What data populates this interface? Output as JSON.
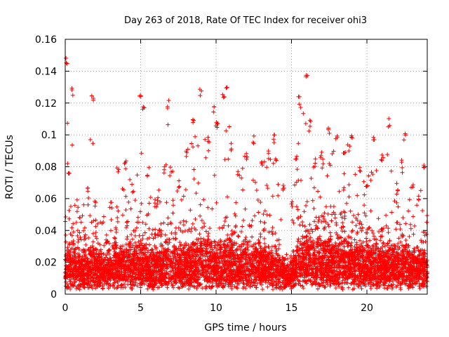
{
  "chart_data": {
    "type": "scatter",
    "title": "Day 263 of 2018, Rate Of TEC Index for receiver ohi3",
    "xlabel": "GPS time / hours",
    "ylabel": "ROTI / TECUs",
    "xlim": [
      0,
      24
    ],
    "ylim": [
      0,
      0.16
    ],
    "x_ticks": [
      0,
      5,
      10,
      15,
      20,
      25
    ],
    "x_tick_labels": [
      "0",
      "5",
      "10",
      "15",
      "20",
      ""
    ],
    "y_ticks": [
      0,
      0.02,
      0.04,
      0.06,
      0.08,
      0.1,
      0.12,
      0.14,
      0.16
    ],
    "y_tick_labels": [
      "0",
      "0.02",
      "0.04",
      "0.06",
      "0.08",
      "0.1",
      "0.12",
      "0.14",
      "0.16"
    ],
    "grid": true,
    "marker": "plus",
    "series": [
      {
        "color": "#ff0000",
        "envelope": {
          "x": [
            0,
            0.1,
            0.2,
            0.5,
            0.8,
            1.0,
            1.5,
            1.8,
            2.0,
            2.5,
            3.0,
            3.5,
            3.8,
            4.0,
            4.5,
            5.0,
            5.2,
            5.5,
            6.0,
            6.5,
            6.8,
            7.0,
            7.5,
            8.0,
            8.5,
            9.0,
            9.5,
            9.8,
            10.0,
            10.5,
            10.7,
            11.0,
            11.5,
            12.0,
            12.5,
            13.0,
            13.5,
            13.8,
            14.0,
            14.5,
            15.0,
            15.3,
            15.5,
            16.0,
            16.2,
            16.5,
            17.0,
            17.5,
            18.0,
            18.5,
            18.8,
            19.0,
            19.5,
            20.0,
            20.5,
            21.0,
            21.5,
            22.0,
            22.3,
            22.5,
            23.0,
            23.5,
            23.8,
            24.0
          ],
          "peak": [
            0.05,
            0.15,
            0.08,
            0.13,
            0.06,
            0.05,
            0.07,
            0.127,
            0.06,
            0.05,
            0.06,
            0.08,
            0.07,
            0.085,
            0.07,
            0.13,
            0.12,
            0.08,
            0.06,
            0.08,
            0.122,
            0.08,
            0.07,
            0.09,
            0.11,
            0.13,
            0.1,
            0.12,
            0.11,
            0.127,
            0.13,
            0.095,
            0.08,
            0.09,
            0.1,
            0.085,
            0.09,
            0.101,
            0.085,
            0.07,
            0.06,
            0.09,
            0.125,
            0.142,
            0.11,
            0.085,
            0.09,
            0.105,
            0.1,
            0.09,
            0.095,
            0.1,
            0.08,
            0.07,
            0.1,
            0.09,
            0.111,
            0.07,
            0.085,
            0.102,
            0.07,
            0.065,
            0.083,
            0.05
          ],
          "bulk_max": [
            0.035,
            0.04,
            0.04,
            0.045,
            0.04,
            0.038,
            0.04,
            0.045,
            0.04,
            0.03,
            0.035,
            0.04,
            0.04,
            0.042,
            0.04,
            0.045,
            0.045,
            0.04,
            0.035,
            0.045,
            0.05,
            0.045,
            0.04,
            0.045,
            0.045,
            0.05,
            0.045,
            0.045,
            0.045,
            0.045,
            0.05,
            0.045,
            0.04,
            0.045,
            0.045,
            0.04,
            0.04,
            0.04,
            0.035,
            0.025,
            0.02,
            0.04,
            0.05,
            0.055,
            0.05,
            0.045,
            0.05,
            0.05,
            0.05,
            0.05,
            0.05,
            0.05,
            0.045,
            0.04,
            0.045,
            0.04,
            0.045,
            0.04,
            0.04,
            0.045,
            0.04,
            0.035,
            0.04,
            0.03
          ],
          "floor": 0.003,
          "approximate": true
        }
      }
    ]
  }
}
